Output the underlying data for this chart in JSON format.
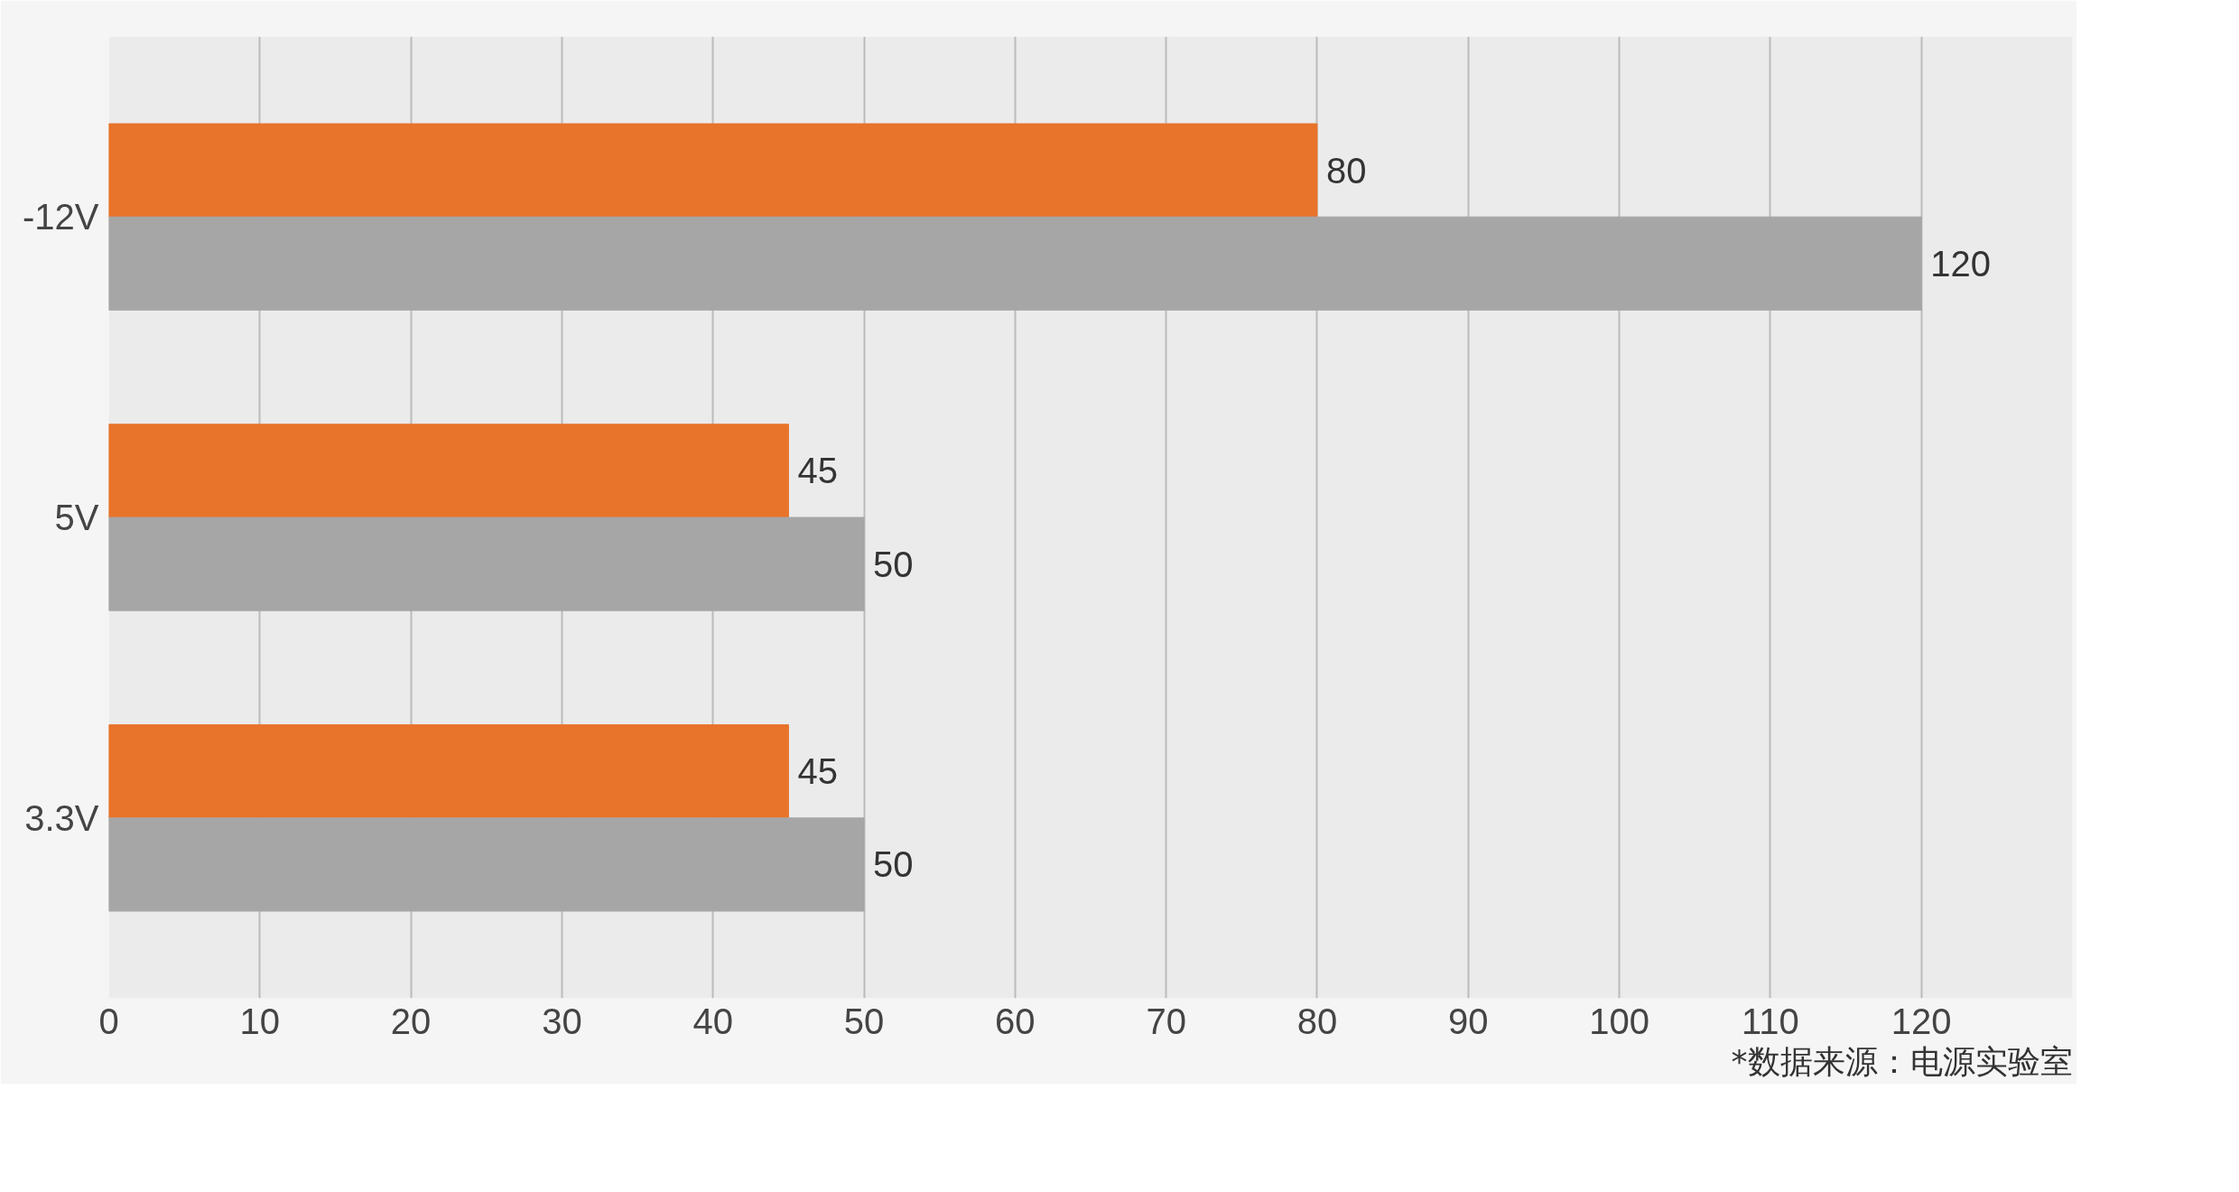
{
  "chart_data": {
    "type": "bar",
    "orientation": "horizontal",
    "categories": [
      "-12V",
      "5V",
      "3.3V"
    ],
    "series": [
      {
        "color": "#e8732a",
        "values": [
          80,
          45,
          45
        ]
      },
      {
        "color": "#a6a6a6",
        "values": [
          120,
          50,
          50
        ]
      }
    ],
    "xlim": [
      0,
      130
    ],
    "xticks": [
      0,
      10,
      20,
      30,
      40,
      50,
      60,
      70,
      80,
      90,
      100,
      110,
      120,
      {
        "value": 130,
        "label": null
      }
    ],
    "grid": "x",
    "data_labels": true,
    "annotations": [
      "*数据来源：电源实验室"
    ]
  }
}
